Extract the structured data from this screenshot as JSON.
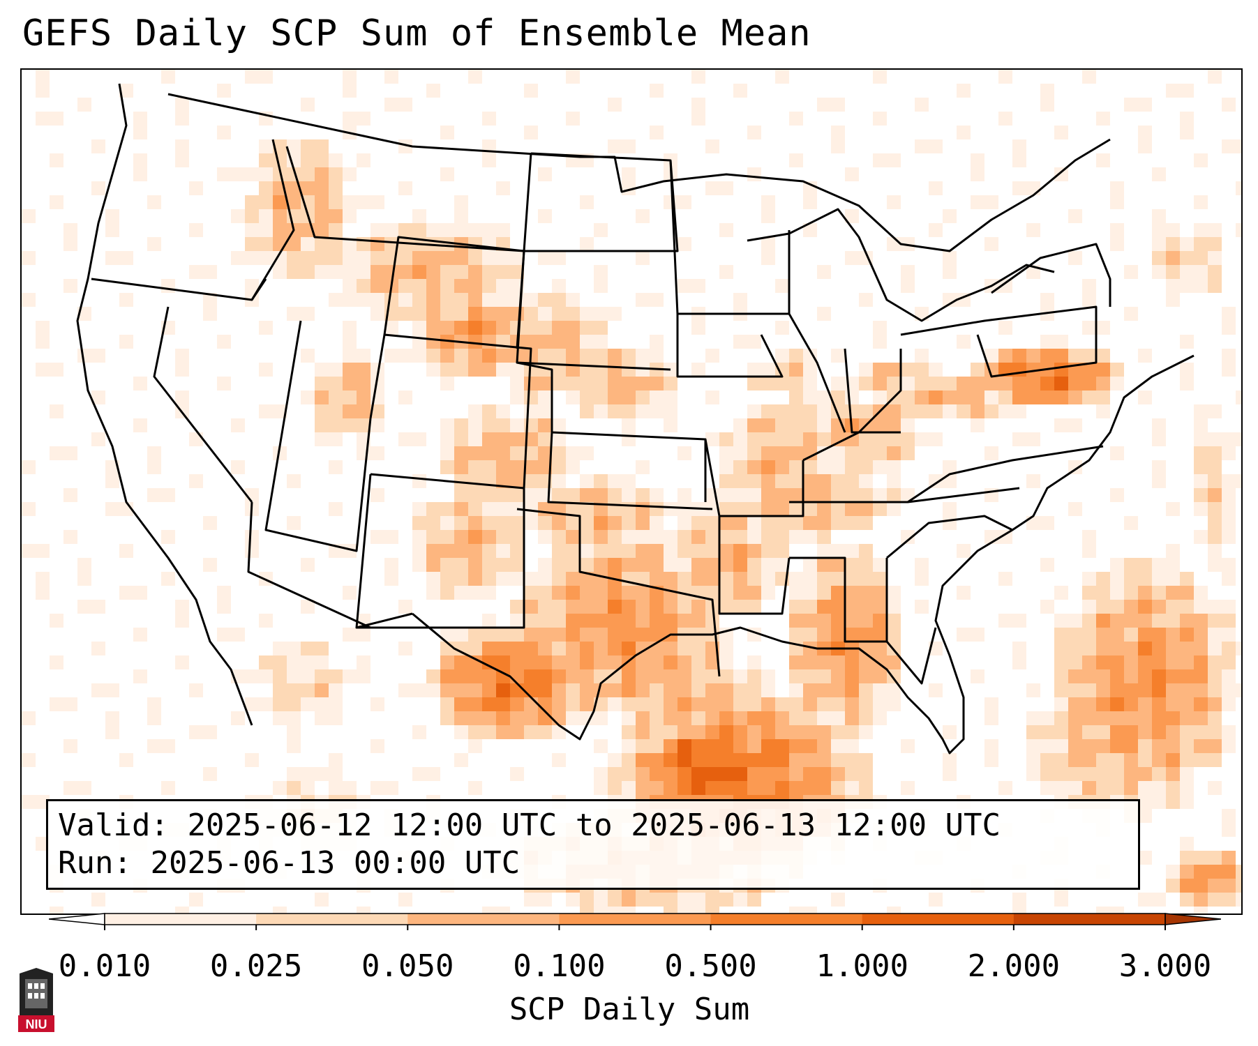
{
  "title": "GEFS Daily SCP Sum of Ensemble Mean",
  "info": {
    "valid_label": "Valid:",
    "valid_value": "2025-06-12 12:00 UTC to 2025-06-13 12:00 UTC",
    "run_label": "Run:",
    "run_value": "2025-06-13 00:00 UTC"
  },
  "colorbar": {
    "title": "SCP Daily Sum",
    "ticks": [
      "0.010",
      "0.025",
      "0.050",
      "0.100",
      "0.500",
      "1.000",
      "2.000",
      "3.000"
    ],
    "colors": [
      "#fff0e4",
      "#fdd9b6",
      "#fdb67f",
      "#fb9a52",
      "#f57f2b",
      "#e6600e",
      "#c84503"
    ]
  },
  "logo": {
    "text": "NIU",
    "color": "#c8102e"
  }
}
